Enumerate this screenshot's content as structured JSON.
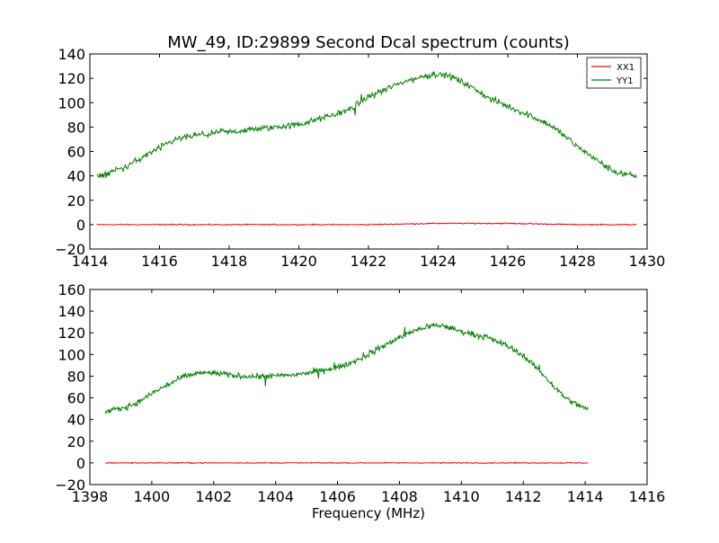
{
  "chart_data": [
    {
      "type": "line",
      "title": "MW_49, ID:29899 Second Dcal spectrum (counts)",
      "xlabel": "",
      "ylabel": "",
      "xlim": [
        1414,
        1430
      ],
      "ylim": [
        -20,
        140
      ],
      "xticks": [
        1414,
        1416,
        1418,
        1420,
        1422,
        1424,
        1426,
        1428,
        1430
      ],
      "yticks": [
        -20,
        0,
        20,
        40,
        60,
        80,
        100,
        120,
        140
      ],
      "grid": false,
      "legend": "top-right",
      "x_range": [
        1414.2,
        1429.7
      ],
      "series": [
        {
          "name": "XX1",
          "color": "#ff0000",
          "x": [
            1414.2,
            1416,
            1418,
            1420,
            1422,
            1424,
            1426,
            1428,
            1429.7
          ],
          "values": [
            0,
            0,
            0,
            0,
            0,
            1,
            1,
            0,
            0
          ]
        },
        {
          "name": "YY1",
          "color": "#008000",
          "x": [
            1414.2,
            1415,
            1415.5,
            1416,
            1416.5,
            1417,
            1418,
            1419,
            1420,
            1420.5,
            1421,
            1421.5,
            1422,
            1422.5,
            1423,
            1423.5,
            1424,
            1424.5,
            1425,
            1425.5,
            1426,
            1426.5,
            1427,
            1427.5,
            1428,
            1428.5,
            1429,
            1429.7
          ],
          "values": [
            39,
            47,
            55,
            63,
            70,
            73,
            76,
            79,
            82,
            86,
            90,
            95,
            105,
            111,
            117,
            121,
            124,
            120,
            112,
            103,
            97,
            91,
            85,
            76,
            64,
            54,
            44,
            39
          ]
        }
      ]
    },
    {
      "type": "line",
      "title": "",
      "xlabel": "Frequency (MHz)",
      "ylabel": "",
      "xlim": [
        1398,
        1416
      ],
      "ylim": [
        -20,
        160
      ],
      "xticks": [
        1398,
        1400,
        1402,
        1404,
        1406,
        1408,
        1410,
        1412,
        1414,
        1416
      ],
      "yticks": [
        -20,
        0,
        20,
        40,
        60,
        80,
        100,
        120,
        140,
        160
      ],
      "grid": false,
      "legend": "none",
      "x_range": [
        1398.5,
        1414.1
      ],
      "series": [
        {
          "name": "XX1",
          "color": "#ff0000",
          "x": [
            1398.5,
            1402,
            1406,
            1410,
            1414.1
          ],
          "values": [
            0,
            0,
            0,
            0,
            0
          ]
        },
        {
          "name": "YY1",
          "color": "#008000",
          "x": [
            1398.5,
            1399,
            1399.5,
            1400,
            1400.5,
            1401,
            1401.5,
            1402,
            1402.5,
            1403,
            1403.5,
            1404,
            1404.5,
            1405,
            1405.5,
            1406,
            1406.5,
            1407,
            1407.5,
            1408,
            1408.5,
            1409,
            1409.5,
            1410,
            1410.5,
            1411,
            1411.5,
            1412,
            1412.5,
            1413,
            1413.5,
            1414.1
          ],
          "values": [
            47,
            50,
            55,
            64,
            72,
            79,
            83,
            83,
            81,
            80,
            80,
            80,
            81,
            83,
            85,
            88,
            93,
            100,
            108,
            116,
            122,
            127,
            126,
            121,
            118,
            114,
            108,
            99,
            86,
            70,
            57,
            49
          ]
        }
      ]
    }
  ]
}
